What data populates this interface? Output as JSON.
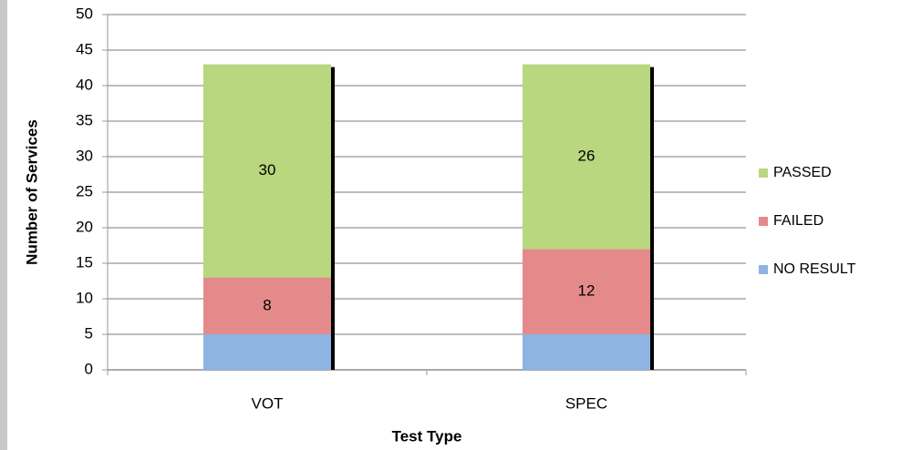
{
  "chart_data": {
    "type": "stacked_bar",
    "x_label": "Test Type",
    "y_label": "Number of Services",
    "categories": [
      "VOT",
      "SPEC"
    ],
    "series": [
      {
        "name": "NO RESULT",
        "color": "#8db4e2",
        "values": [
          5,
          5
        ],
        "data_labels": false
      },
      {
        "name": "FAILED",
        "color": "#e58a8a",
        "values": [
          8,
          12
        ],
        "data_labels": true
      },
      {
        "name": "PASSED",
        "color": "#b9d77f",
        "values": [
          30,
          26
        ],
        "data_labels": true
      }
    ],
    "ylim": [
      0,
      50
    ],
    "yticks": [
      0,
      5,
      10,
      15,
      20,
      25,
      30,
      35,
      40,
      45,
      50
    ],
    "grid": true,
    "legend": "right"
  }
}
